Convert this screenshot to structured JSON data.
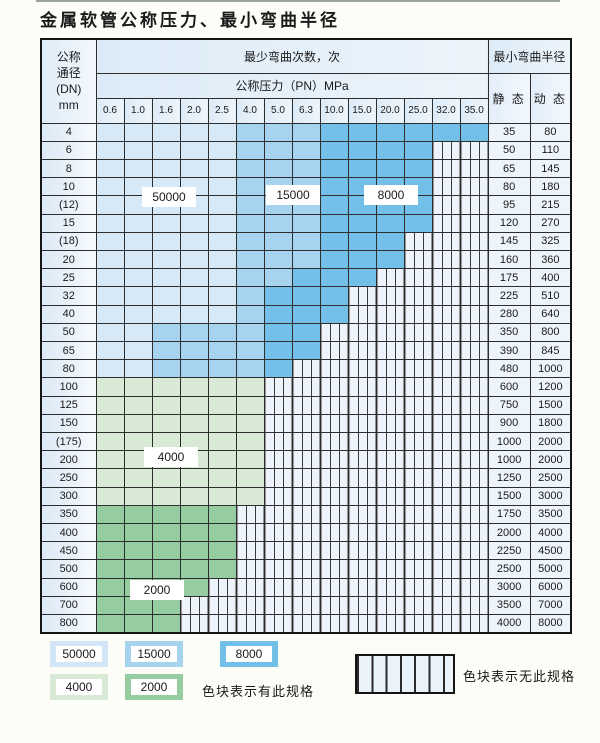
{
  "title": "金属软管公称压力、最小弯曲半径",
  "colors": {
    "blue_50000": "#d7e9f7",
    "blue_15000": "#a6d4ef",
    "blue_8000": "#72bfe8",
    "green_4000": "#d8ead5",
    "green_2000": "#95cca0"
  },
  "table": {
    "dn_header_lines": [
      "公称",
      "通径",
      "(DN)",
      "mm"
    ],
    "bend_cycles_header": "最少弯曲次数，次",
    "pressure_header": "公称压力（PN）MPa",
    "radius_header": "最小弯曲半径",
    "static_header": "静 态",
    "dynamic_header": "动 态",
    "pressures": [
      "0.6",
      "1.0",
      "1.6",
      "2.0",
      "2.5",
      "4.0",
      "5.0",
      "6.3",
      "10.0",
      "15.0",
      "20.0",
      "25.0",
      "32.0",
      "35.0"
    ],
    "cell_legend": {
      "b1": "50000",
      "b2": "15000",
      "b3": "8000",
      "g1": "4000",
      "g2": "2000",
      "x": "无此规格"
    },
    "rows": [
      {
        "dn": "4",
        "cells": [
          "b1",
          "b1",
          "b1",
          "b1",
          "b1",
          "b2",
          "b2",
          "b2",
          "b3",
          "b3",
          "b3",
          "b3",
          "b3",
          "b3"
        ],
        "static": "35",
        "dynamic": "80"
      },
      {
        "dn": "6",
        "cells": [
          "b1",
          "b1",
          "b1",
          "b1",
          "b1",
          "b2",
          "b2",
          "b2",
          "b3",
          "b3",
          "b3",
          "b3",
          "x",
          "x"
        ],
        "static": "50",
        "dynamic": "110"
      },
      {
        "dn": "8",
        "cells": [
          "b1",
          "b1",
          "b1",
          "b1",
          "b1",
          "b2",
          "b2",
          "b2",
          "b3",
          "b3",
          "b3",
          "b3",
          "x",
          "x"
        ],
        "static": "65",
        "dynamic": "145"
      },
      {
        "dn": "10",
        "cells": [
          "b1",
          "b1",
          "b1",
          "b1",
          "b1",
          "b2",
          "b2",
          "b2",
          "b3",
          "b3",
          "b3",
          "b3",
          "x",
          "x"
        ],
        "static": "80",
        "dynamic": "180"
      },
      {
        "dn": "(12)",
        "cells": [
          "b1",
          "b1",
          "b1",
          "b1",
          "b1",
          "b2",
          "b2",
          "b2",
          "b3",
          "b3",
          "b3",
          "b3",
          "x",
          "x"
        ],
        "static": "95",
        "dynamic": "215"
      },
      {
        "dn": "15",
        "cells": [
          "b1",
          "b1",
          "b1",
          "b1",
          "b1",
          "b2",
          "b2",
          "b2",
          "b3",
          "b3",
          "b3",
          "b3",
          "x",
          "x"
        ],
        "static": "120",
        "dynamic": "270"
      },
      {
        "dn": "(18)",
        "cells": [
          "b1",
          "b1",
          "b1",
          "b1",
          "b1",
          "b2",
          "b2",
          "b2",
          "b3",
          "b3",
          "b3",
          "x",
          "x",
          "x"
        ],
        "static": "145",
        "dynamic": "325"
      },
      {
        "dn": "20",
        "cells": [
          "b1",
          "b1",
          "b1",
          "b1",
          "b1",
          "b2",
          "b2",
          "b2",
          "b3",
          "b3",
          "b3",
          "x",
          "x",
          "x"
        ],
        "static": "160",
        "dynamic": "360"
      },
      {
        "dn": "25",
        "cells": [
          "b1",
          "b1",
          "b1",
          "b1",
          "b1",
          "b2",
          "b2",
          "b3",
          "b3",
          "b3",
          "x",
          "x",
          "x",
          "x"
        ],
        "static": "175",
        "dynamic": "400"
      },
      {
        "dn": "32",
        "cells": [
          "b1",
          "b1",
          "b1",
          "b1",
          "b1",
          "b2",
          "b3",
          "b3",
          "b3",
          "x",
          "x",
          "x",
          "x",
          "x"
        ],
        "static": "225",
        "dynamic": "510"
      },
      {
        "dn": "40",
        "cells": [
          "b1",
          "b1",
          "b1",
          "b1",
          "b1",
          "b2",
          "b3",
          "b3",
          "b3",
          "x",
          "x",
          "x",
          "x",
          "x"
        ],
        "static": "280",
        "dynamic": "640"
      },
      {
        "dn": "50",
        "cells": [
          "b1",
          "b1",
          "b2",
          "b2",
          "b2",
          "b2",
          "b3",
          "b3",
          "x",
          "x",
          "x",
          "x",
          "x",
          "x"
        ],
        "static": "350",
        "dynamic": "800"
      },
      {
        "dn": "65",
        "cells": [
          "b1",
          "b1",
          "b2",
          "b2",
          "b2",
          "b2",
          "b3",
          "b3",
          "x",
          "x",
          "x",
          "x",
          "x",
          "x"
        ],
        "static": "390",
        "dynamic": "845"
      },
      {
        "dn": "80",
        "cells": [
          "b1",
          "b1",
          "b2",
          "b2",
          "b2",
          "b2",
          "b3",
          "x",
          "x",
          "x",
          "x",
          "x",
          "x",
          "x"
        ],
        "static": "480",
        "dynamic": "1000"
      },
      {
        "dn": "100",
        "cells": [
          "g1",
          "g1",
          "g1",
          "g1",
          "g1",
          "g1",
          "x",
          "x",
          "x",
          "x",
          "x",
          "x",
          "x",
          "x"
        ],
        "static": "600",
        "dynamic": "1200"
      },
      {
        "dn": "125",
        "cells": [
          "g1",
          "g1",
          "g1",
          "g1",
          "g1",
          "g1",
          "x",
          "x",
          "x",
          "x",
          "x",
          "x",
          "x",
          "x"
        ],
        "static": "750",
        "dynamic": "1500"
      },
      {
        "dn": "150",
        "cells": [
          "g1",
          "g1",
          "g1",
          "g1",
          "g1",
          "g1",
          "x",
          "x",
          "x",
          "x",
          "x",
          "x",
          "x",
          "x"
        ],
        "static": "900",
        "dynamic": "1800"
      },
      {
        "dn": "(175)",
        "cells": [
          "g1",
          "g1",
          "g1",
          "g1",
          "g1",
          "g1",
          "x",
          "x",
          "x",
          "x",
          "x",
          "x",
          "x",
          "x"
        ],
        "static": "1000",
        "dynamic": "2000"
      },
      {
        "dn": "200",
        "cells": [
          "g1",
          "g1",
          "g1",
          "g1",
          "g1",
          "g1",
          "x",
          "x",
          "x",
          "x",
          "x",
          "x",
          "x",
          "x"
        ],
        "static": "1000",
        "dynamic": "2000"
      },
      {
        "dn": "250",
        "cells": [
          "g1",
          "g1",
          "g1",
          "g1",
          "g1",
          "g1",
          "x",
          "x",
          "x",
          "x",
          "x",
          "x",
          "x",
          "x"
        ],
        "static": "1250",
        "dynamic": "2500"
      },
      {
        "dn": "300",
        "cells": [
          "g1",
          "g1",
          "g1",
          "g1",
          "g1",
          "g1",
          "x",
          "x",
          "x",
          "x",
          "x",
          "x",
          "x",
          "x"
        ],
        "static": "1500",
        "dynamic": "3000"
      },
      {
        "dn": "350",
        "cells": [
          "g2",
          "g2",
          "g2",
          "g2",
          "g2",
          "x",
          "x",
          "x",
          "x",
          "x",
          "x",
          "x",
          "x",
          "x"
        ],
        "static": "1750",
        "dynamic": "3500"
      },
      {
        "dn": "400",
        "cells": [
          "g2",
          "g2",
          "g2",
          "g2",
          "g2",
          "x",
          "x",
          "x",
          "x",
          "x",
          "x",
          "x",
          "x",
          "x"
        ],
        "static": "2000",
        "dynamic": "4000"
      },
      {
        "dn": "450",
        "cells": [
          "g2",
          "g2",
          "g2",
          "g2",
          "g2",
          "x",
          "x",
          "x",
          "x",
          "x",
          "x",
          "x",
          "x",
          "x"
        ],
        "static": "2250",
        "dynamic": "4500"
      },
      {
        "dn": "500",
        "cells": [
          "g2",
          "g2",
          "g2",
          "g2",
          "g2",
          "x",
          "x",
          "x",
          "x",
          "x",
          "x",
          "x",
          "x",
          "x"
        ],
        "static": "2500",
        "dynamic": "5000"
      },
      {
        "dn": "600",
        "cells": [
          "g2",
          "g2",
          "g2",
          "g2",
          "x",
          "x",
          "x",
          "x",
          "x",
          "x",
          "x",
          "x",
          "x",
          "x"
        ],
        "static": "3000",
        "dynamic": "6000"
      },
      {
        "dn": "700",
        "cells": [
          "g2",
          "g2",
          "g2",
          "x",
          "x",
          "x",
          "x",
          "x",
          "x",
          "x",
          "x",
          "x",
          "x",
          "x"
        ],
        "static": "3500",
        "dynamic": "7000"
      },
      {
        "dn": "800",
        "cells": [
          "g2",
          "g2",
          "g2",
          "x",
          "x",
          "x",
          "x",
          "x",
          "x",
          "x",
          "x",
          "x",
          "x",
          "x"
        ],
        "static": "4000",
        "dynamic": "8000"
      }
    ]
  },
  "overlays": {
    "l50000": "50000",
    "l15000": "15000",
    "l8000": "8000",
    "l4000": "4000",
    "l2000": "2000"
  },
  "legend": {
    "swatches": [
      {
        "label": "50000"
      },
      {
        "label": "15000"
      },
      {
        "label": "8000"
      },
      {
        "label": "4000"
      },
      {
        "label": "2000"
      }
    ],
    "has_spec_text": "色块表示有此规格",
    "no_spec_text": "色块表示无此规格"
  }
}
